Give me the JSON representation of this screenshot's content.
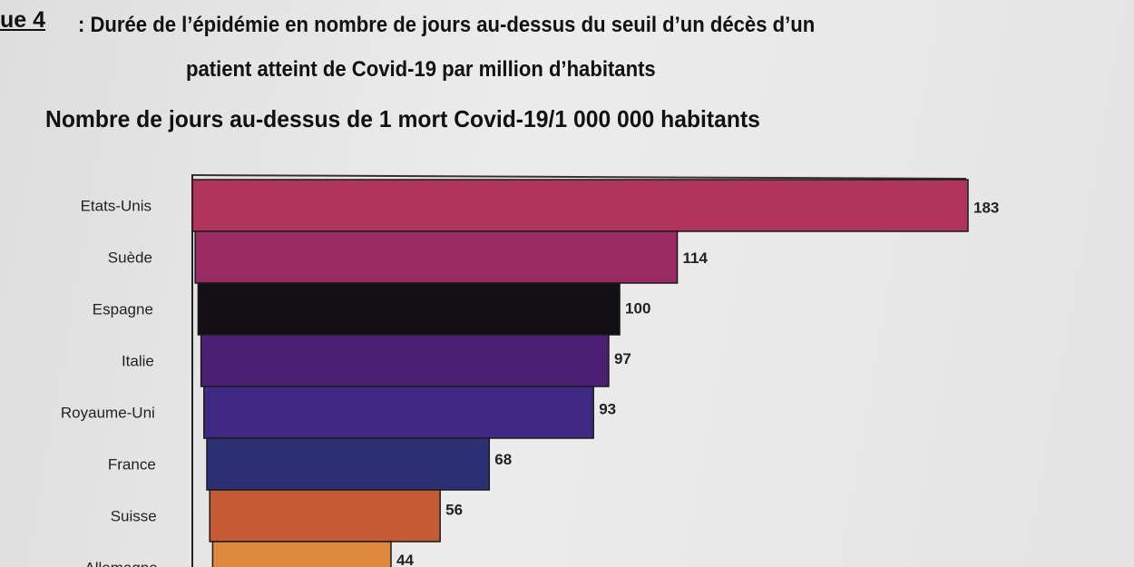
{
  "figure": {
    "label_prefix": "ue 4",
    "title_line1": " : Durée de l’épidémie en nombre de jours au-dessus du seuil d’un décès d’un",
    "title_line2": "patient atteint de Covid-19 par million d’habitants"
  },
  "chart_data": {
    "type": "bar",
    "orientation": "horizontal",
    "title": "Nombre de jours au-dessus de 1 mort Covid-19/1 000 000 habitants",
    "categories": [
      "Etats-Unis",
      "Suède",
      "Espagne",
      "Italie",
      "Royaume-Uni",
      "France",
      "Suisse",
      "Allemagne"
    ],
    "values": [
      183,
      114,
      100,
      97,
      93,
      68,
      56,
      44
    ],
    "colors": [
      "#b0345c",
      "#992a62",
      "#121014",
      "#4b1f72",
      "#402885",
      "#2b2f74",
      "#c65a32",
      "#de8a3c"
    ],
    "data_labels": true,
    "grid": false,
    "legend": "none"
  }
}
